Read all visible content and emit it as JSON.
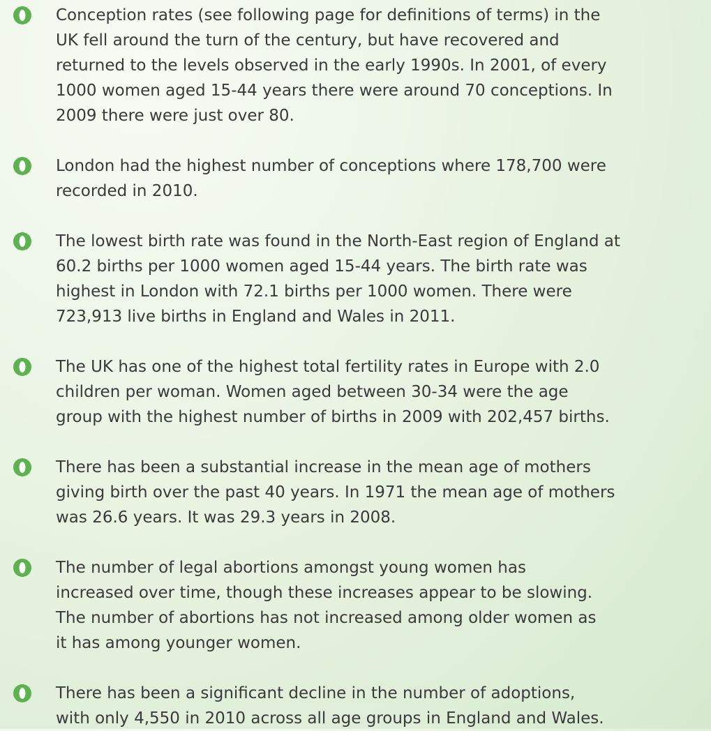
{
  "bullets": [
    {
      "lines": [
        "Conception rates (see following page for definitions of terms) in the",
        "UK fell around the turn of the century, but have recovered and",
        "returned to the levels observed in the early 1990s. In 2001, of every",
        "1000 women aged 15-44 years there were around 70 conceptions. In",
        "2009 there were just over 80."
      ]
    },
    {
      "lines": [
        "London had the highest number of conceptions where 178,700 were",
        "recorded in 2010."
      ]
    },
    {
      "lines": [
        "The lowest birth rate was found in the North-East region of England at",
        "60.2 births per 1000 women aged 15-44 years. The birth rate was",
        "highest in London with 72.1 births per 1000 women. There were",
        "723,913 live births in England and Wales in 2011."
      ]
    },
    {
      "lines": [
        "The UK has one of the highest total fertility rates in Europe with 2.0",
        "children per woman. Women aged between 30-34 were the age",
        "group with the highest number of births in 2009 with 202,457 births."
      ]
    },
    {
      "lines": [
        "There has been a substantial increase in the mean age of mothers",
        "giving birth over the past 40 years. In 1971 the mean age of mothers",
        "was 26.6 years. It was 29.3 years in 2008."
      ]
    },
    {
      "lines": [
        "The number of legal abortions amongst young women has",
        "increased over time, though these increases appear to be slowing.",
        "The number of abortions has not increased among older women as",
        "it has among younger women."
      ]
    },
    {
      "lines": [
        "There has been a significant decline in the number of adoptions,",
        "with only 4,550 in 2010 across all age groups in England and Wales."
      ]
    }
  ]
}
